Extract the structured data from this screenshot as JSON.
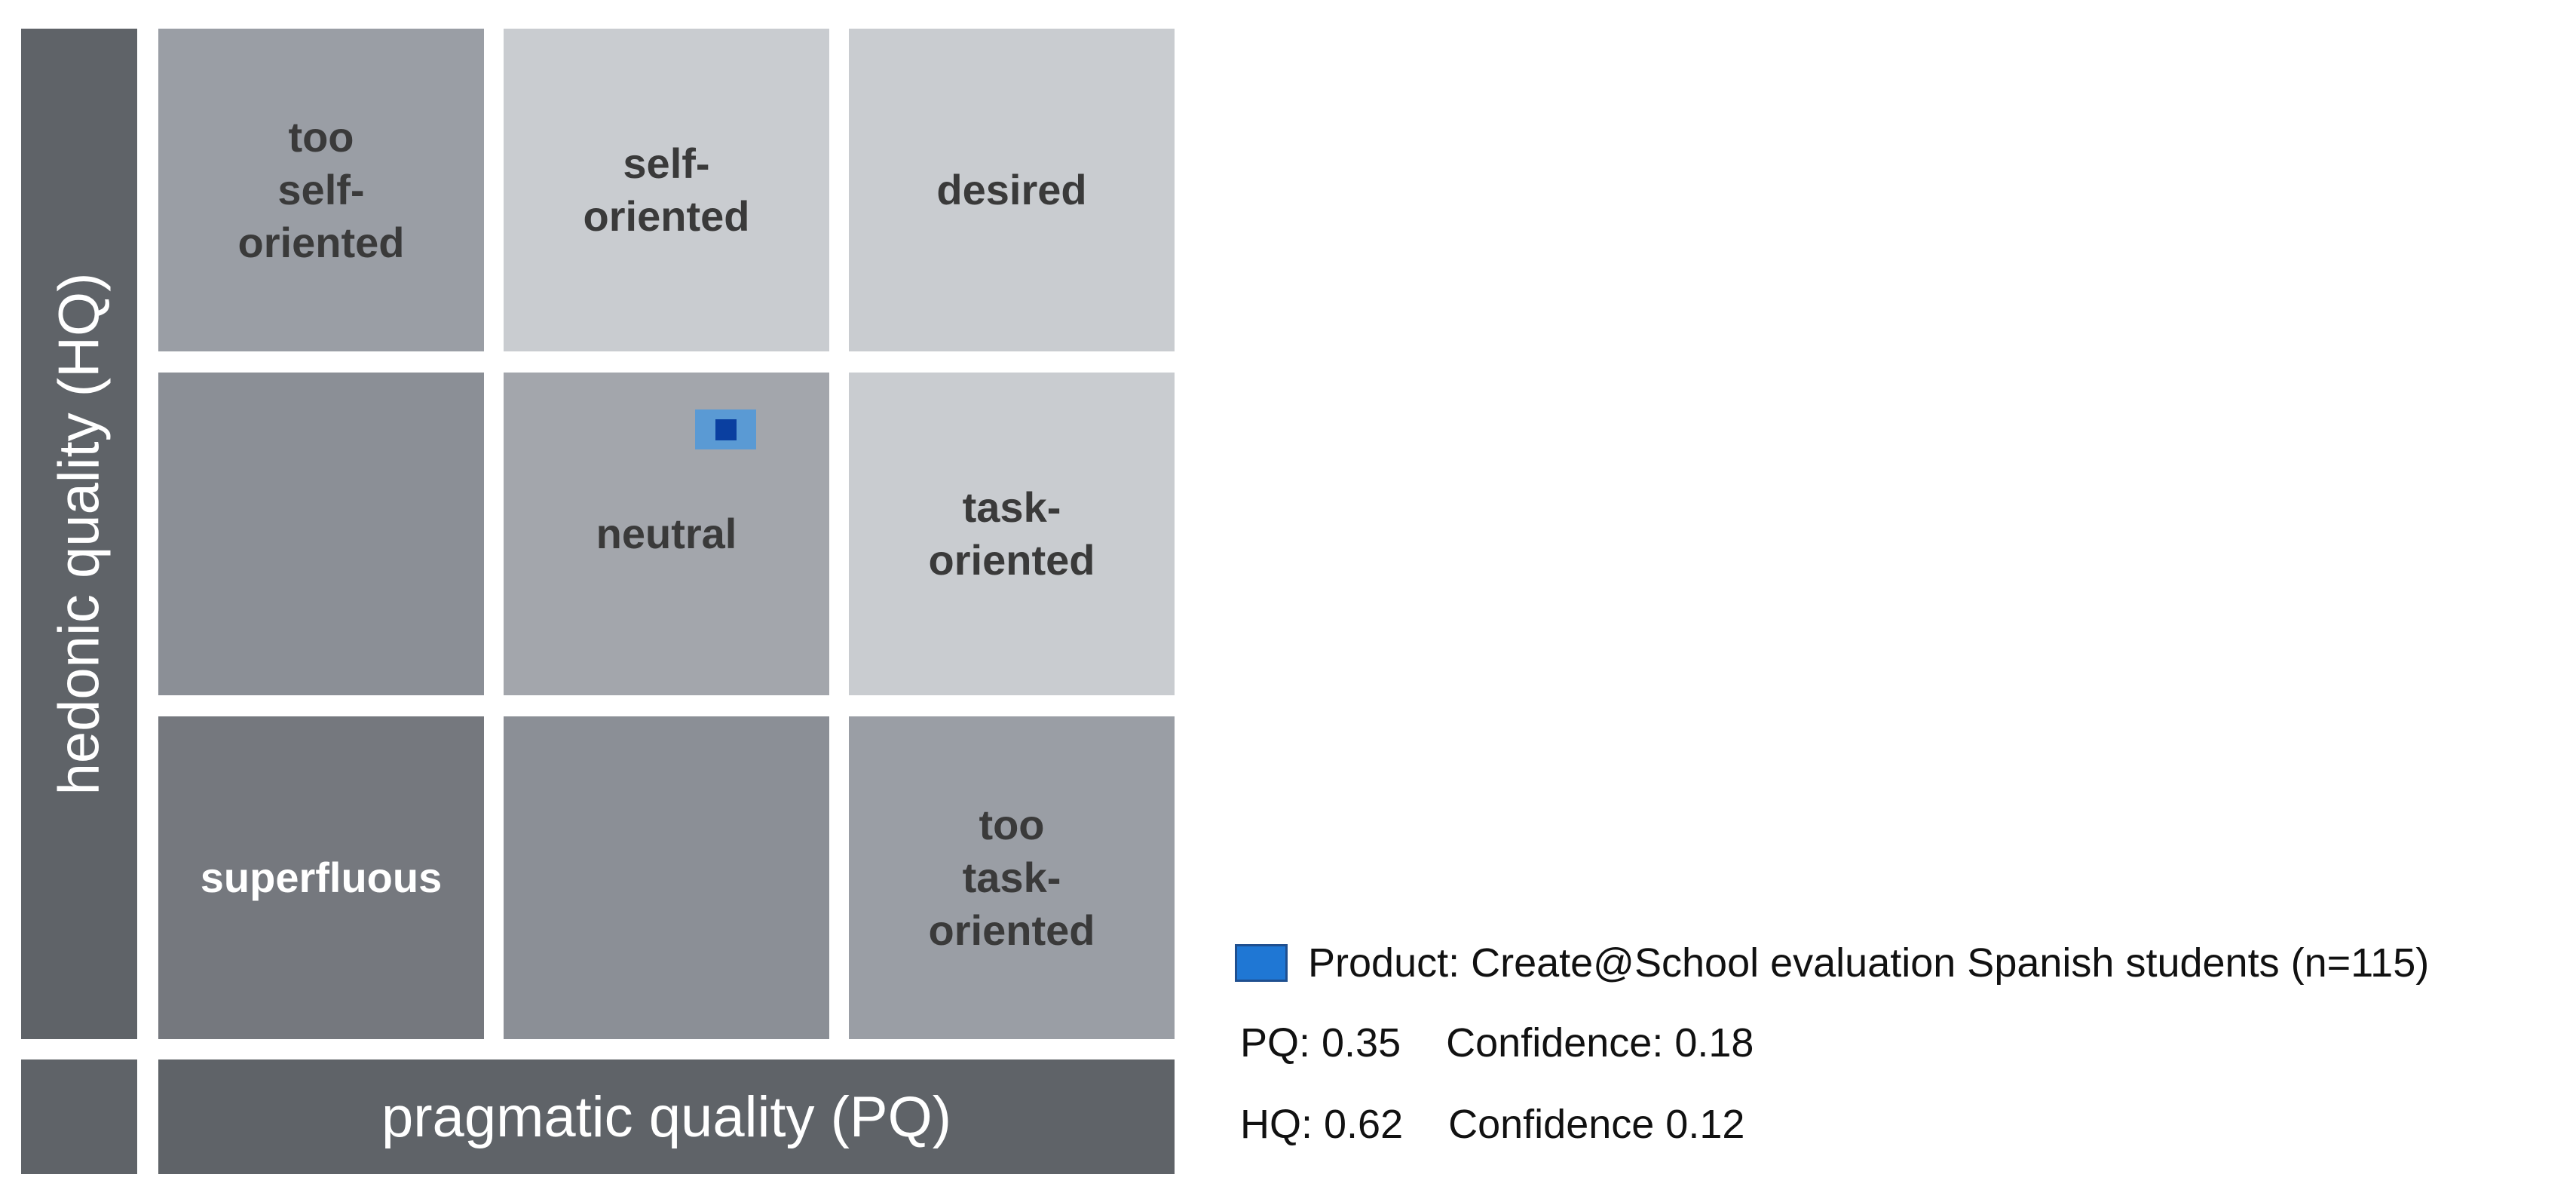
{
  "chart_data": {
    "type": "scatter",
    "title": "",
    "xlabel": "pragmatic quality (PQ)",
    "ylabel": "hedonic quality (HQ)",
    "xlim": [
      -3,
      3
    ],
    "ylim": [
      -3,
      3
    ],
    "regions": [
      {
        "row": 0,
        "col": 0,
        "label": "too\nself-\noriented",
        "fill": "#9a9ea5",
        "text_color": "#3a3a3a"
      },
      {
        "row": 0,
        "col": 1,
        "label": "self-\noriented",
        "fill": "#c9ccd0",
        "text_color": "#3a3a3a"
      },
      {
        "row": 0,
        "col": 2,
        "label": "desired",
        "fill": "#c9ccd0",
        "text_color": "#3a3a3a"
      },
      {
        "row": 1,
        "col": 0,
        "label": "",
        "fill": "#8b8f96",
        "text_color": "#3a3a3a"
      },
      {
        "row": 1,
        "col": 1,
        "label": "neutral",
        "fill": "#a3a6ac",
        "text_color": "#3a3a3a"
      },
      {
        "row": 1,
        "col": 2,
        "label": "task-\noriented",
        "fill": "#c9ccd0",
        "text_color": "#3a3a3a"
      },
      {
        "row": 2,
        "col": 0,
        "label": "superfluous",
        "fill": "#75787e",
        "text_color": "#ffffff"
      },
      {
        "row": 2,
        "col": 1,
        "label": "",
        "fill": "#8b8f96",
        "text_color": "#3a3a3a"
      },
      {
        "row": 2,
        "col": 2,
        "label": "too\ntask-\noriented",
        "fill": "#9a9ea5",
        "text_color": "#3a3a3a"
      }
    ],
    "series": [
      {
        "name": "Product: Create@School evaluation Spanish students (n=115)",
        "x": 0.35,
        "y": 0.62,
        "x_confidence": 0.18,
        "y_confidence": 0.12
      }
    ],
    "legend": {
      "placement": "bottom-right",
      "line1": "Product: Create@School evaluation Spanish students (n=115)",
      "line2": "PQ: 0.35    Confidence: 0.18",
      "line3": "HQ: 0.62    Confidence 0.12"
    },
    "colors": {
      "axis_bar": "#5f6368",
      "marker": "#1f77d4",
      "marker_conf": "#5a9ad4",
      "marker_core": "#0a3fa0"
    }
  }
}
